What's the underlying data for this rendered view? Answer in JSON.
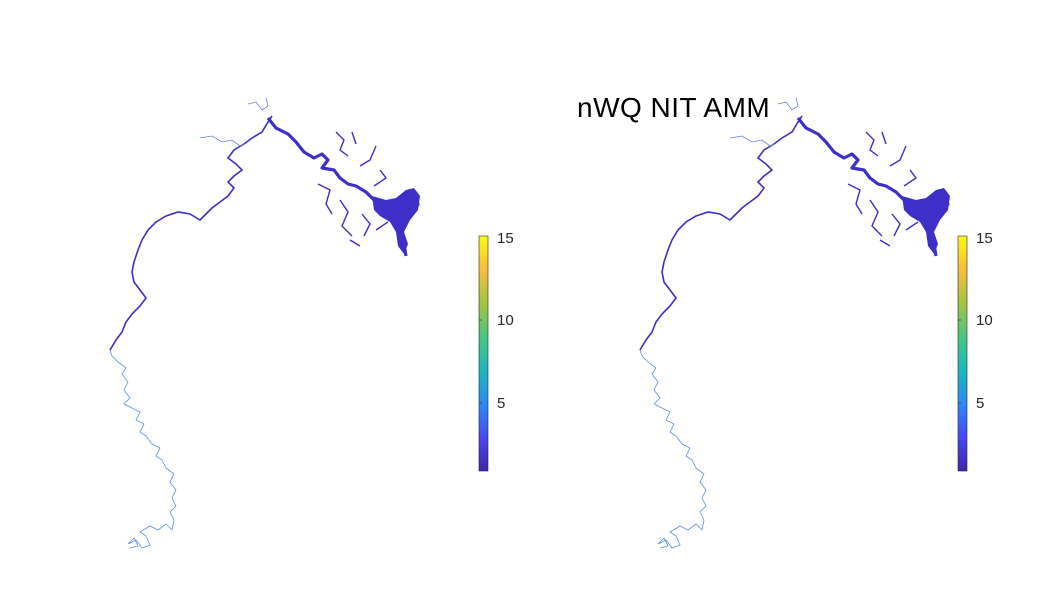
{
  "figure": {
    "title": "nWQ NIT AMM"
  },
  "colormap": {
    "name": "parula",
    "min": 0.5,
    "max": 15,
    "ticks": [
      {
        "value": 5,
        "label": "5"
      },
      {
        "value": 10,
        "label": "10"
      },
      {
        "value": 15,
        "label": "15"
      }
    ],
    "stops": [
      "#3e26a8",
      "#4748f2",
      "#2e87f7",
      "#1bb6c3",
      "#47c782",
      "#a0c543",
      "#f9bd3a",
      "#f9fb15"
    ]
  },
  "colors": {
    "river_fill": "#3d2fc7",
    "upstream_line": "#5a8fe6",
    "tributary_line": "#6a7ee0"
  },
  "panels": [
    {
      "name": "left-map",
      "has_title": false
    },
    {
      "name": "right-map",
      "has_title": true
    }
  ]
}
